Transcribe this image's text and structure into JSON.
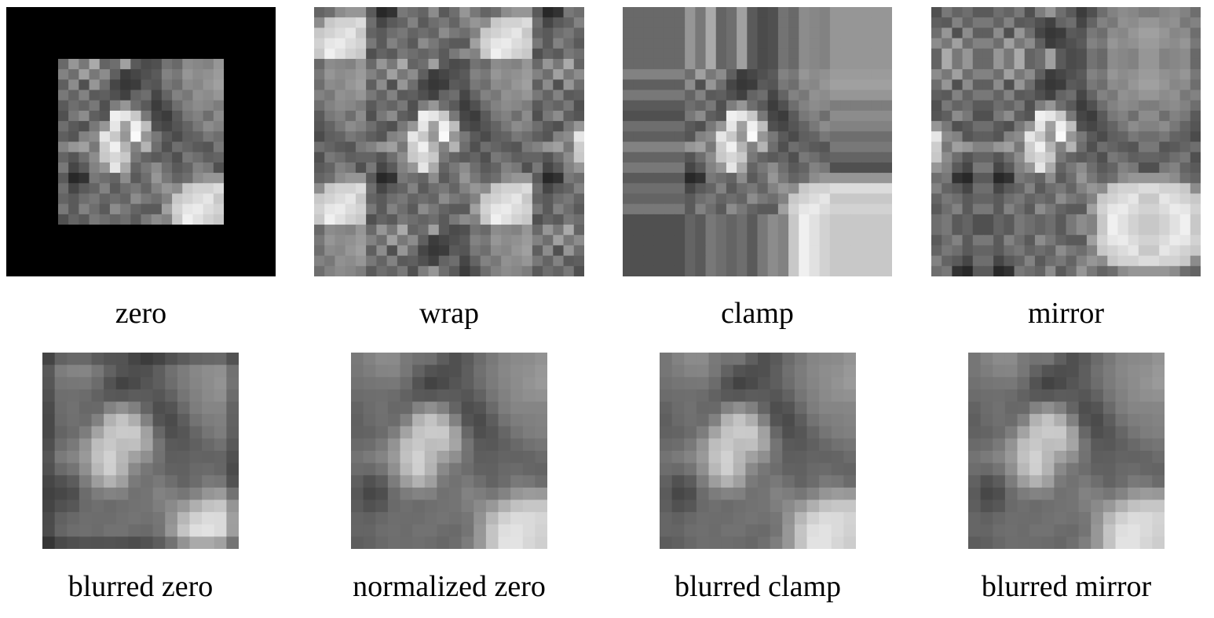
{
  "figure": {
    "panels": [
      {
        "caption": "zero",
        "mode": "zero",
        "blurred": false
      },
      {
        "caption": "wrap",
        "mode": "wrap",
        "blurred": false
      },
      {
        "caption": "clamp",
        "mode": "clamp",
        "blurred": false
      },
      {
        "caption": "mirror",
        "mode": "mirror",
        "blurred": false
      },
      {
        "caption": "blurred zero",
        "mode": "zero",
        "blurred": true
      },
      {
        "caption": "normalized zero",
        "mode": "normalized",
        "blurred": true
      },
      {
        "caption": "blurred clamp",
        "mode": "clamp",
        "blurred": true
      },
      {
        "caption": "blurred mirror",
        "mode": "mirror",
        "blurred": true
      }
    ],
    "image": [
      [
        105,
        150,
        120,
        170,
        100,
        110,
        160,
        90,
        75,
        80,
        115,
        105,
        140,
        135,
        130,
        150
      ],
      [
        130,
        110,
        160,
        120,
        140,
        95,
        60,
        70,
        80,
        90,
        130,
        120,
        150,
        140,
        145,
        155
      ],
      [
        95,
        140,
        80,
        150,
        110,
        70,
        55,
        60,
        90,
        85,
        120,
        110,
        140,
        135,
        150,
        160
      ],
      [
        120,
        100,
        130,
        90,
        95,
        80,
        65,
        100,
        110,
        70,
        100,
        130,
        120,
        145,
        140,
        150
      ],
      [
        90,
        110,
        100,
        120,
        80,
        125,
        150,
        110,
        90,
        60,
        80,
        110,
        130,
        140,
        135,
        125
      ],
      [
        80,
        120,
        140,
        95,
        85,
        240,
        230,
        200,
        120,
        70,
        60,
        90,
        120,
        130,
        110,
        140
      ],
      [
        110,
        90,
        80,
        120,
        150,
        230,
        160,
        240,
        190,
        80,
        70,
        85,
        100,
        120,
        140,
        130
      ],
      [
        95,
        85,
        130,
        140,
        230,
        200,
        150,
        250,
        150,
        120,
        90,
        75,
        95,
        100,
        120,
        110
      ],
      [
        130,
        150,
        160,
        120,
        205,
        240,
        180,
        130,
        180,
        110,
        80,
        110,
        100,
        90,
        85,
        120
      ],
      [
        100,
        85,
        110,
        140,
        200,
        215,
        200,
        120,
        100,
        90,
        100,
        80,
        120,
        110,
        95,
        100
      ],
      [
        120,
        70,
        90,
        130,
        150,
        230,
        170,
        100,
        120,
        140,
        110,
        90,
        100,
        130,
        120,
        80
      ],
      [
        90,
        40,
        50,
        120,
        110,
        100,
        140,
        90,
        110,
        150,
        120,
        100,
        110,
        140,
        150,
        150
      ],
      [
        110,
        70,
        90,
        100,
        130,
        90,
        110,
        120,
        100,
        130,
        150,
        140,
        200,
        210,
        210,
        220
      ],
      [
        100,
        90,
        110,
        120,
        100,
        110,
        100,
        140,
        120,
        110,
        130,
        200,
        210,
        220,
        230,
        200
      ],
      [
        120,
        90,
        130,
        110,
        90,
        140,
        120,
        100,
        90,
        90,
        160,
        210,
        230,
        235,
        220,
        210
      ],
      [
        80,
        100,
        90,
        120,
        110,
        100,
        110,
        90,
        120,
        140,
        130,
        200,
        240,
        225,
        210,
        200
      ]
    ]
  }
}
